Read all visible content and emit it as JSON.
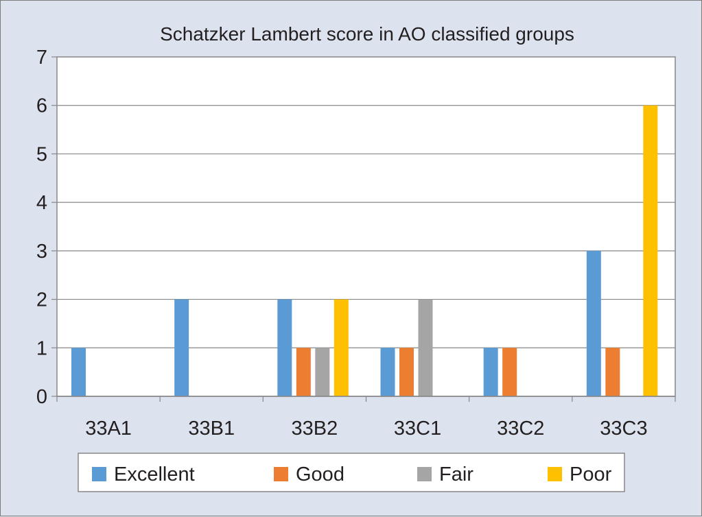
{
  "chart_data": {
    "type": "bar",
    "title": "Schatzker Lambert score in AO classified groups",
    "xlabel": "",
    "ylabel": "",
    "categories": [
      "33A1",
      "33B1",
      "33B2",
      "33C1",
      "33C2",
      "33C3"
    ],
    "series": [
      {
        "name": "Excellent",
        "color": "#5b9bd5",
        "values": [
          1,
          2,
          2,
          1,
          1,
          3
        ]
      },
      {
        "name": "Good",
        "color": "#ed7d31",
        "values": [
          0,
          0,
          1,
          1,
          1,
          1
        ]
      },
      {
        "name": "Fair",
        "color": "#a5a5a5",
        "values": [
          0,
          0,
          1,
          2,
          0,
          0
        ]
      },
      {
        "name": "Poor",
        "color": "#ffc000",
        "values": [
          0,
          0,
          2,
          0,
          0,
          6
        ]
      }
    ],
    "yticks": [
      "0",
      "1",
      "2",
      "3",
      "4",
      "5",
      "6",
      "7"
    ],
    "ylim": [
      0,
      7
    ],
    "grid": true,
    "legend_position": "bottom"
  }
}
